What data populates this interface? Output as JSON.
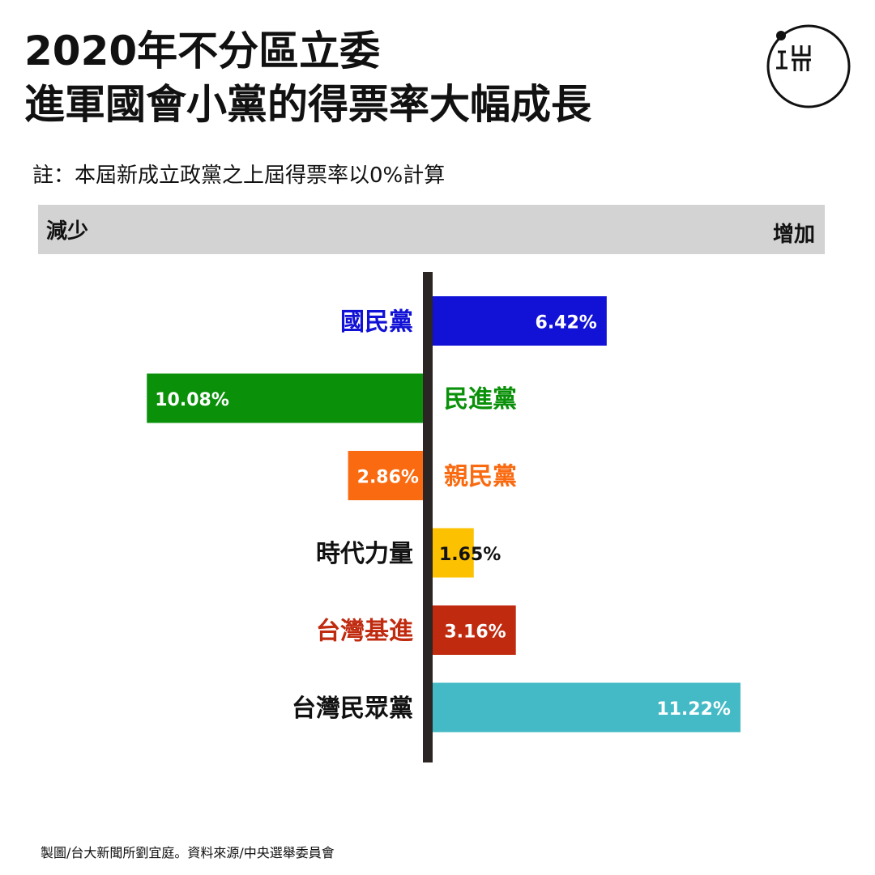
{
  "title": {
    "line1": "2020年不分區立委",
    "line2": "進軍國會小黨的得票率大幅成長"
  },
  "note": "註：本屆新成立政黨之上屆得票率以0%計算",
  "direction": {
    "decrease": "減少",
    "increase": "增加"
  },
  "footer": "製圖/台大新聞所劉宜庭。資料來源/中央選舉委員會",
  "logo_icon": "initium-logo-icon",
  "chart_data": {
    "type": "bar",
    "orientation": "horizontal-diverging",
    "categories": [
      "國民黨",
      "民進黨",
      "親民黨",
      "時代力量",
      "台灣基進",
      "台灣民眾黨"
    ],
    "values": [
      6.42,
      -10.08,
      -2.86,
      1.65,
      3.16,
      11.22
    ],
    "value_labels": [
      "6.42%",
      "10.08%",
      "2.86%",
      "1.65%",
      "3.16%",
      "11.22%"
    ],
    "colors": [
      "#1212d6",
      "#0a9109",
      "#fa6a10",
      "#fcc100",
      "#c02a0f",
      "#43bac5"
    ],
    "label_colors": [
      "#1212d6",
      "#0a9109",
      "#fa6a10",
      "#111111",
      "#c02a0f",
      "#111111"
    ],
    "value_label_colors": [
      "#ffffff",
      "#ffffff",
      "#ffffff",
      "#111111",
      "#ffffff",
      "#ffffff"
    ],
    "xlim": [
      -12,
      12
    ]
  }
}
